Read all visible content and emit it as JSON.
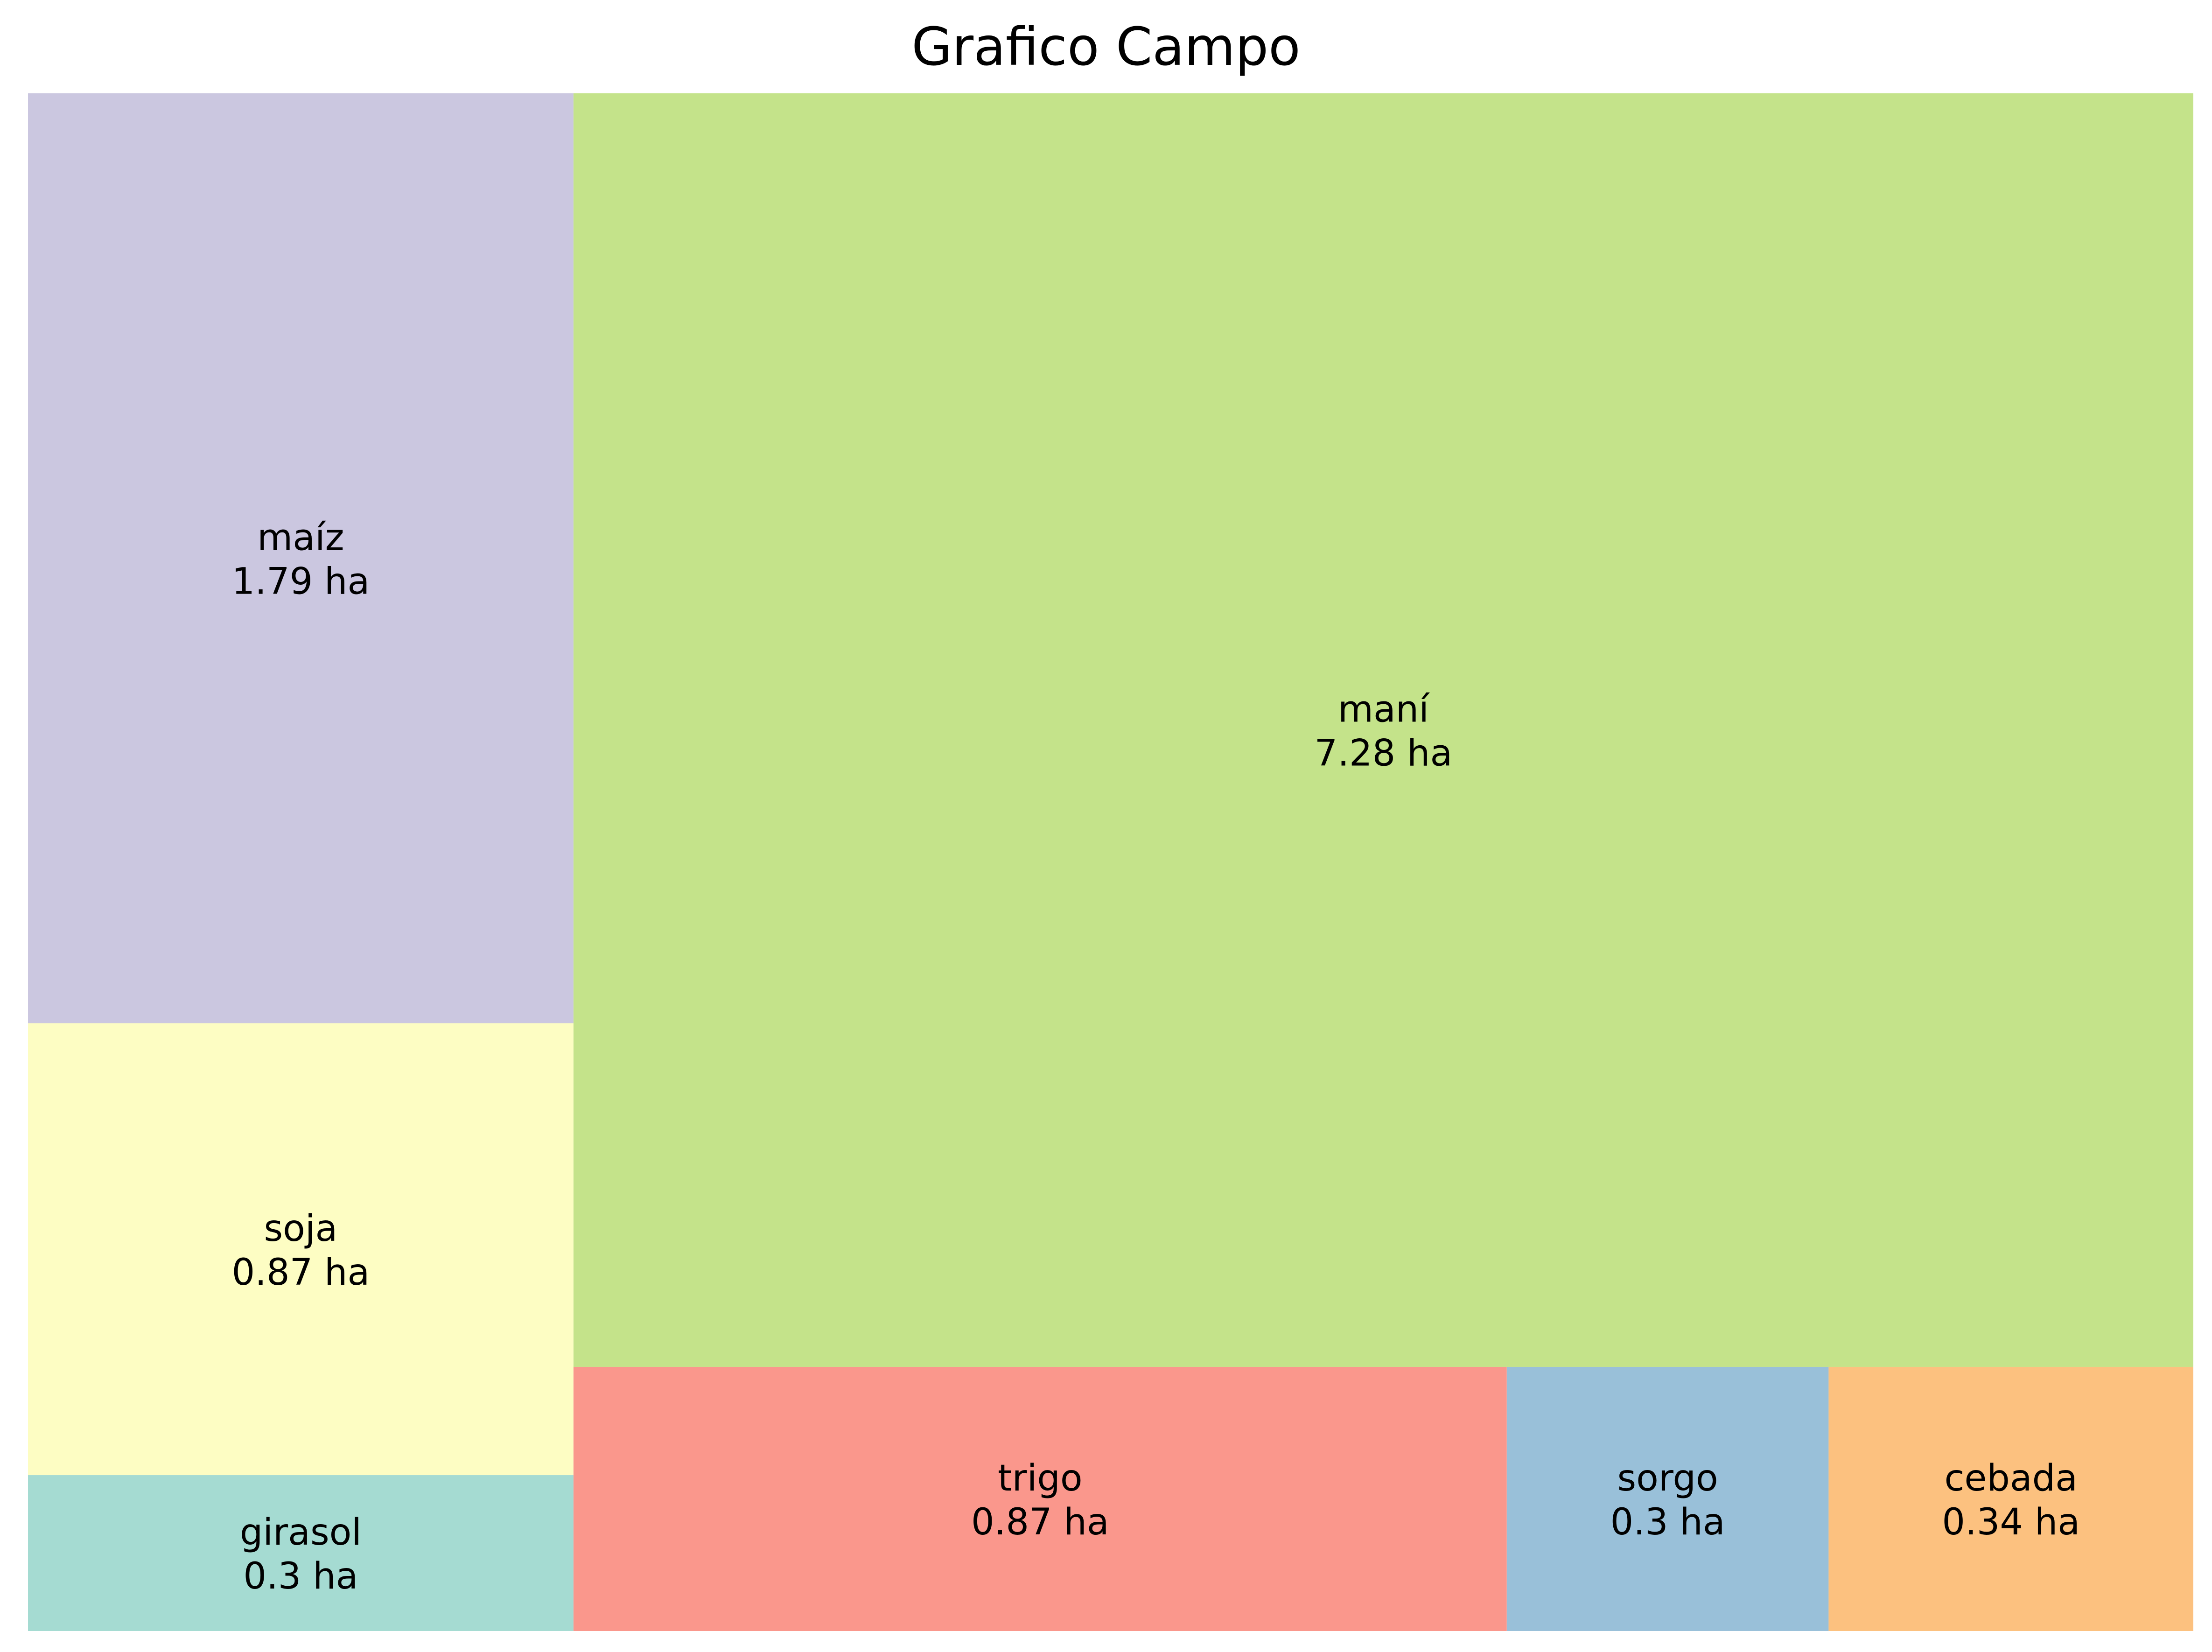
{
  "chart_data": {
    "type": "treemap",
    "title": "Grafico Campo",
    "unit": "ha",
    "items": [
      {
        "name": "girasol",
        "value": 0.3,
        "label": "0.3 ha",
        "color": "#a5dbd2"
      },
      {
        "name": "soja",
        "value": 0.87,
        "label": "0.87 ha",
        "color": "#fdfdc3"
      },
      {
        "name": "maíz",
        "value": 1.79,
        "label": "1.79 ha",
        "color": "#cbc7e0"
      },
      {
        "name": "trigo",
        "value": 0.87,
        "label": "0.87 ha",
        "color": "#fa978c"
      },
      {
        "name": "sorgo",
        "value": 0.3,
        "label": "0.3 ha",
        "color": "#99c0d9"
      },
      {
        "name": "cebada",
        "value": 0.34,
        "label": "0.34 ha",
        "color": "#fcc17f"
      },
      {
        "name": "maní",
        "value": 7.28,
        "label": "7.28 ha",
        "color": "#c4e38a"
      }
    ]
  }
}
